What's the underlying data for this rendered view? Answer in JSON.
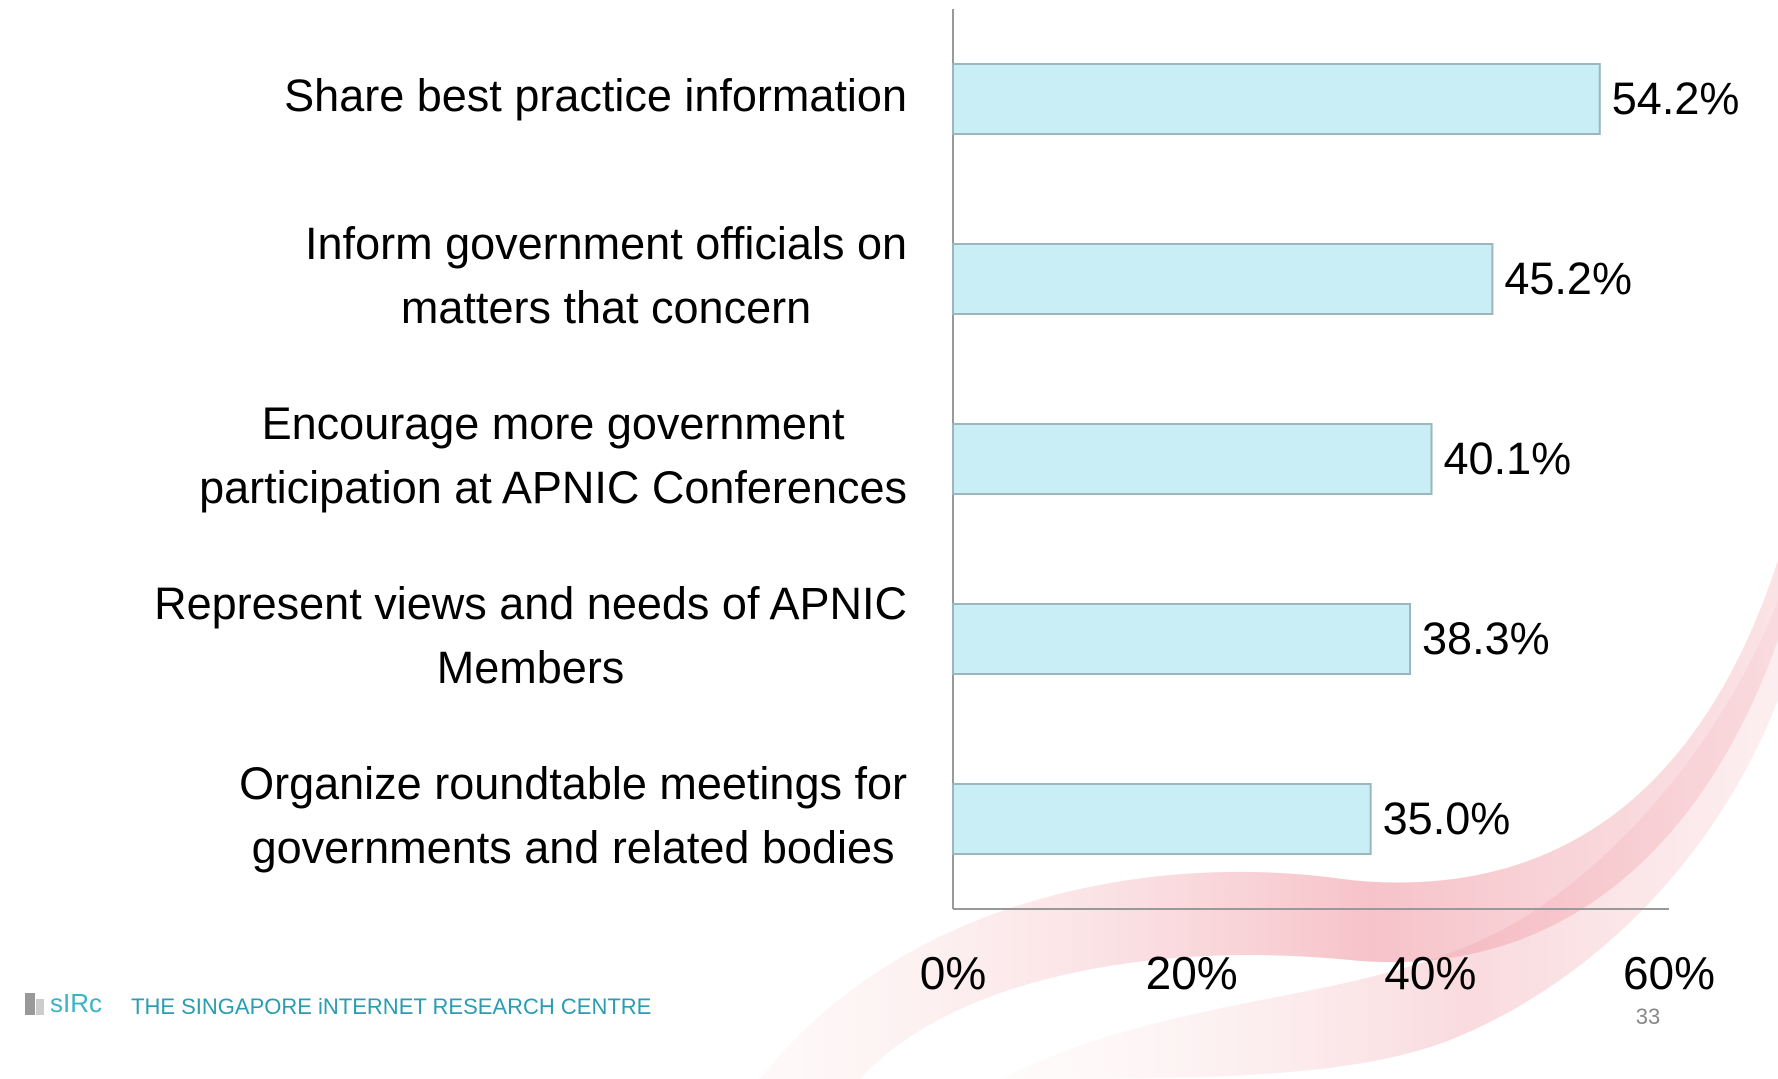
{
  "chart_data": {
    "type": "bar",
    "orientation": "horizontal",
    "categories": [
      [
        "Share best practice information"
      ],
      [
        "Inform government officials on",
        "matters that concern"
      ],
      [
        "Encourage more government",
        "participation at APNIC Conferences"
      ],
      [
        "Represent views and needs of APNIC",
        "Members"
      ],
      [
        "Organize roundtable meetings for",
        "governments and related bodies"
      ]
    ],
    "values": [
      54.2,
      45.2,
      40.1,
      38.3,
      35.0
    ],
    "value_labels": [
      "54.2%",
      "45.2%",
      "40.1%",
      "38.3%",
      "35.0%"
    ],
    "color": "#c9eef6",
    "xlim": [
      0,
      60
    ],
    "xticks": [
      {
        "value": 0,
        "label": "0%"
      },
      {
        "value": 20,
        "label": "20%"
      },
      {
        "value": 40,
        "label": "40%"
      },
      {
        "value": 60,
        "label": "60%"
      }
    ],
    "grid": false
  },
  "footer": {
    "logo": "sIRc",
    "organization": "THE SINGAPORE iNTERNET RESEARCH CENTRE",
    "page_number": "33"
  }
}
